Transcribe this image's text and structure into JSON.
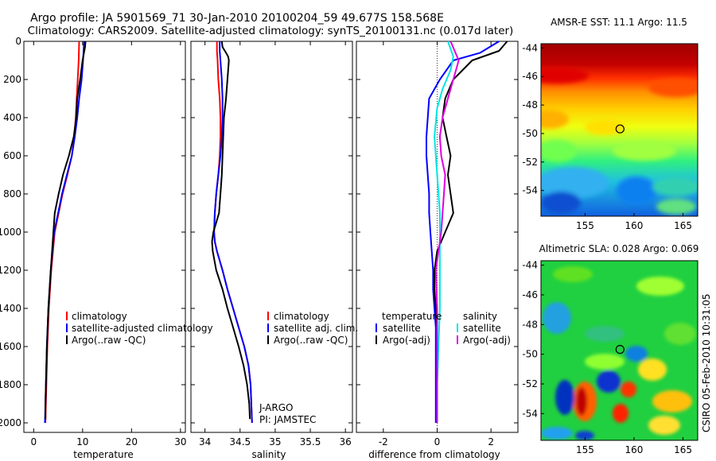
{
  "header": {
    "title_line1": "Argo profile: JA 5901569_71 30-Jan-2010 20100204_59 49.677S 158.568E",
    "title_line2": "Climatology: CARS2009. Satellite-adjusted climatology: synTS_20100131.nc (0.017d later)"
  },
  "colors": {
    "climatology": "#ff0000",
    "satellite": "#0000ff",
    "argo": "#000000",
    "sat_sal": "#00e5e5",
    "argo_sal": "#e000e0"
  },
  "chart_data": [
    {
      "id": "temperature",
      "type": "line",
      "xlabel": "temperature",
      "ylabel": "",
      "xlim": [
        -2,
        31
      ],
      "ylim": [
        2050,
        0
      ],
      "xticks": [
        0,
        10,
        20,
        30
      ],
      "xtick_labels": [
        "0",
        "10",
        "20",
        "30"
      ],
      "yticks": [
        0,
        200,
        400,
        600,
        800,
        1000,
        1200,
        1400,
        1600,
        1800,
        2000
      ],
      "ytick_labels": [
        "0",
        "200",
        "400",
        "600",
        "800",
        "1000",
        "1200",
        "1400",
        "1600",
        "1800",
        "2000"
      ],
      "legend": [
        "climatology",
        "satellite-adjusted climatology",
        "Argo(..raw -QC)"
      ],
      "series": [
        {
          "name": "climatology",
          "color": "#ff0000",
          "x": [
            9.3,
            9.2,
            9.0,
            8.8,
            8.6,
            8.3,
            7.8,
            6.9,
            5.9,
            5.1,
            4.3,
            3.6,
            3.1,
            2.8,
            2.6,
            2.5,
            2.4
          ],
          "y": [
            0,
            100,
            200,
            300,
            400,
            500,
            600,
            700,
            800,
            900,
            1000,
            1200,
            1400,
            1600,
            1800,
            1900,
            2000
          ]
        },
        {
          "name": "satellite-adjusted climatology",
          "color": "#0000ff",
          "x": [
            10.3,
            10.1,
            9.8,
            9.3,
            8.9,
            8.4,
            7.8,
            6.8,
            5.8,
            5.0,
            4.2,
            3.5,
            3.0,
            2.7,
            2.5,
            2.4,
            2.3
          ],
          "y": [
            0,
            100,
            200,
            300,
            400,
            500,
            600,
            700,
            800,
            900,
            1000,
            1200,
            1400,
            1600,
            1800,
            1900,
            2000
          ]
        },
        {
          "name": "Argo(..raw -QC)",
          "color": "#000000",
          "x": [
            10.6,
            10.5,
            10.0,
            9.5,
            8.9,
            8.7,
            8.2,
            7.2,
            6.0,
            5.1,
            4.3,
            3.5,
            3.0,
            2.7,
            2.5,
            2.4,
            2.4
          ],
          "y": [
            0,
            30,
            100,
            200,
            300,
            400,
            500,
            600,
            700,
            800,
            900,
            1200,
            1400,
            1600,
            1800,
            1900,
            1980
          ]
        }
      ]
    },
    {
      "id": "salinity",
      "type": "line",
      "xlabel": "salinity",
      "ylabel": "",
      "xlim": [
        33.8,
        36.1
      ],
      "ylim": [
        2050,
        0
      ],
      "xticks": [
        34,
        34.5,
        35,
        35.5,
        36
      ],
      "xtick_labels": [
        "34",
        "34.5",
        "35",
        "35.5",
        "36"
      ],
      "legend": [
        "climatology",
        "satellite adj. clim.",
        "Argo(..raw -QC)"
      ],
      "annotation": [
        "J-ARGO",
        "PI: JAMSTEC"
      ],
      "series": [
        {
          "name": "climatology",
          "color": "#ff0000",
          "x": [
            34.17,
            34.17,
            34.18,
            34.19,
            34.21,
            34.22,
            34.22,
            34.21,
            34.19,
            34.16,
            34.14,
            34.13,
            34.14,
            34.17,
            34.25,
            34.32,
            34.4,
            34.48,
            34.56,
            34.62,
            34.65,
            34.67
          ],
          "y": [
            0,
            50,
            100,
            200,
            300,
            400,
            500,
            600,
            700,
            800,
            900,
            1000,
            1050,
            1100,
            1200,
            1300,
            1400,
            1500,
            1600,
            1700,
            1800,
            2000
          ]
        },
        {
          "name": "satellite adj. clim.",
          "color": "#0000ff",
          "x": [
            34.21,
            34.21,
            34.22,
            34.24,
            34.25,
            34.25,
            34.24,
            34.22,
            34.19,
            34.16,
            34.14,
            34.13,
            34.14,
            34.17,
            34.25,
            34.32,
            34.4,
            34.48,
            34.56,
            34.62,
            34.65,
            34.67
          ],
          "y": [
            0,
            50,
            100,
            200,
            300,
            400,
            500,
            600,
            700,
            800,
            900,
            1000,
            1050,
            1100,
            1200,
            1300,
            1400,
            1500,
            1600,
            1700,
            1800,
            2000
          ]
        },
        {
          "name": "Argo(..raw -QC)",
          "color": "#000000",
          "x": [
            34.24,
            34.25,
            34.3,
            34.33,
            34.34,
            34.33,
            34.32,
            34.3,
            34.27,
            34.26,
            34.25,
            34.24,
            34.22,
            34.2,
            34.16,
            34.12,
            34.1,
            34.11,
            34.16,
            34.25,
            34.32,
            34.4,
            34.48,
            34.55,
            34.6,
            34.63,
            34.64
          ],
          "y": [
            0,
            30,
            60,
            80,
            100,
            150,
            200,
            300,
            400,
            500,
            600,
            700,
            800,
            900,
            950,
            1000,
            1050,
            1100,
            1200,
            1300,
            1400,
            1500,
            1600,
            1700,
            1800,
            1900,
            1980
          ]
        }
      ]
    },
    {
      "id": "difference",
      "type": "line",
      "xlabel": "difference from climatology",
      "ylabel": "",
      "xlim": [
        -3,
        3
      ],
      "ylim": [
        2050,
        0
      ],
      "xticks": [
        -2,
        0,
        2
      ],
      "xtick_labels": [
        "-2",
        "0",
        "2"
      ],
      "legend_temperature": [
        "temperature",
        "satellite",
        "Argo(-adj)"
      ],
      "legend_salinity": [
        "salinity",
        "satellite",
        "Argo(-adj)"
      ],
      "series": [
        {
          "name": "temperature satellite",
          "color": "#0000ff",
          "x": [
            2.3,
            1.6,
            0.6,
            0.1,
            -0.3,
            -0.35,
            -0.4,
            -0.4,
            -0.35,
            -0.3,
            -0.3,
            -0.25,
            -0.2,
            -0.15,
            -0.15,
            -0.1,
            -0.05,
            -0.05,
            -0.05,
            -0.05
          ],
          "y": [
            0,
            60,
            100,
            200,
            300,
            400,
            500,
            600,
            700,
            800,
            900,
            1000,
            1100,
            1200,
            1300,
            1400,
            1500,
            1600,
            1800,
            2000
          ]
        },
        {
          "name": "temperature Argo(-adj)",
          "color": "#000000",
          "x": [
            2.6,
            2.3,
            1.3,
            0.6,
            0.3,
            0.2,
            0.35,
            0.5,
            0.4,
            0.5,
            0.6,
            0.3,
            0.0,
            -0.1,
            -0.1,
            -0.05,
            0.0,
            0.0,
            0.0
          ],
          "y": [
            0,
            50,
            100,
            200,
            300,
            400,
            500,
            600,
            700,
            800,
            900,
            1000,
            1100,
            1200,
            1300,
            1400,
            1500,
            1800,
            2000
          ]
        },
        {
          "name": "salinity satellite",
          "color": "#00e5e5",
          "x": [
            0.4,
            0.6,
            0.5,
            0.2,
            0.0,
            -0.1,
            -0.05,
            0.0,
            0.05,
            0.1,
            0.1,
            0.1,
            0.1,
            0.05,
            0.0,
            0.0,
            0.0
          ],
          "y": [
            0,
            80,
            150,
            250,
            350,
            500,
            600,
            700,
            800,
            900,
            1000,
            1200,
            1400,
            1600,
            1800,
            1900,
            2000
          ]
        },
        {
          "name": "salinity Argo(-adj)",
          "color": "#e000e0",
          "x": [
            0.5,
            0.8,
            0.6,
            0.4,
            0.2,
            0.1,
            0.15,
            0.3,
            0.25,
            0.2,
            0.15,
            0.05,
            -0.05,
            0.0,
            0.0,
            0.0
          ],
          "y": [
            0,
            100,
            200,
            300,
            400,
            500,
            600,
            700,
            800,
            900,
            1000,
            1100,
            1200,
            1400,
            1600,
            2000
          ]
        }
      ]
    },
    {
      "id": "sst_map",
      "type": "heatmap",
      "title": "AMSR-E SST: 11.1  Argo: 11.5",
      "xlim": [
        150.5,
        166.5
      ],
      "ylim": [
        -55.8,
        -43.7
      ],
      "xticks": [
        155,
        160,
        165
      ],
      "xtick_labels": [
        "155",
        "160",
        "165"
      ],
      "yticks": [
        -44,
        -46,
        -48,
        -50,
        -52,
        -54
      ],
      "ytick_labels": [
        "-44",
        "-46",
        "-48",
        "-50",
        "-52",
        "-54"
      ],
      "marker": {
        "lon": 158.568,
        "lat": -49.677
      }
    },
    {
      "id": "sla_map",
      "type": "heatmap",
      "title": "Altimetric SLA: 0.028  Argo: 0.069",
      "xlim": [
        150.5,
        166.5
      ],
      "ylim": [
        -55.8,
        -43.7
      ],
      "xticks": [
        155,
        160,
        165
      ],
      "xtick_labels": [
        "155",
        "160",
        "165"
      ],
      "yticks": [
        -44,
        -46,
        -48,
        -50,
        -52,
        -54
      ],
      "ytick_labels": [
        "-44",
        "-46",
        "-48",
        "-50",
        "-52",
        "-54"
      ],
      "marker": {
        "lon": 158.568,
        "lat": -49.677
      }
    }
  ],
  "footer": {
    "stamp": "CSIRO 05-Feb-2010 10:31:05"
  }
}
